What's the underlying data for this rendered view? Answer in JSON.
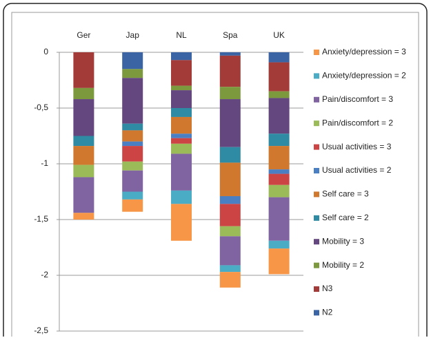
{
  "chart_data": {
    "type": "bar",
    "stacked": true,
    "categories": [
      "Ger",
      "Jap",
      "NL",
      "Spa",
      "UK"
    ],
    "series": [
      {
        "name": "N2",
        "color": "#3b64a4",
        "values": [
          0,
          -0.15,
          -0.07,
          -0.03,
          -0.09
        ]
      },
      {
        "name": "N3",
        "color": "#a33b38",
        "values": [
          -0.32,
          0,
          -0.23,
          -0.28,
          -0.26
        ]
      },
      {
        "name": "Mobility = 2",
        "color": "#7c9a3d",
        "values": [
          -0.1,
          -0.08,
          -0.04,
          -0.11,
          -0.06
        ]
      },
      {
        "name": "Mobility = 3",
        "color": "#65477f",
        "values": [
          -0.33,
          -0.41,
          -0.16,
          -0.43,
          -0.32
        ]
      },
      {
        "name": "Self care = 2",
        "color": "#2e8ba3",
        "values": [
          -0.09,
          -0.06,
          -0.08,
          -0.14,
          -0.11
        ]
      },
      {
        "name": "Self care = 3",
        "color": "#d0782d",
        "values": [
          -0.17,
          -0.1,
          -0.15,
          -0.3,
          -0.21
        ]
      },
      {
        "name": "Usual activities = 2",
        "color": "#4a7fc4",
        "values": [
          0,
          -0.04,
          -0.04,
          -0.07,
          -0.04
        ]
      },
      {
        "name": "Usual activities = 3",
        "color": "#cc4444",
        "values": [
          0,
          -0.14,
          -0.05,
          -0.2,
          -0.1
        ]
      },
      {
        "name": "Pain/discomfort = 2",
        "color": "#9bbb59",
        "values": [
          -0.11,
          -0.08,
          -0.09,
          -0.09,
          -0.11
        ]
      },
      {
        "name": "Pain/discomfort = 3",
        "color": "#8064a2",
        "values": [
          -0.32,
          -0.19,
          -0.33,
          -0.26,
          -0.39
        ]
      },
      {
        "name": "Anxiety/depression = 2",
        "color": "#4bacc6",
        "values": [
          0,
          -0.07,
          -0.12,
          -0.06,
          -0.07
        ]
      },
      {
        "name": "Anxiety/depression = 3",
        "color": "#f79646",
        "values": [
          -0.06,
          -0.11,
          -0.33,
          -0.14,
          -0.23
        ]
      }
    ],
    "ylim": [
      -2.5,
      0
    ],
    "yticks": [
      0,
      {
        "value": -0.5,
        "label": "-0,5"
      },
      -1,
      {
        "value": -1.5,
        "label": "-1,5"
      },
      -2,
      {
        "value": -2.5,
        "label": "-2,5"
      }
    ],
    "grid": true,
    "legend": "right"
  }
}
